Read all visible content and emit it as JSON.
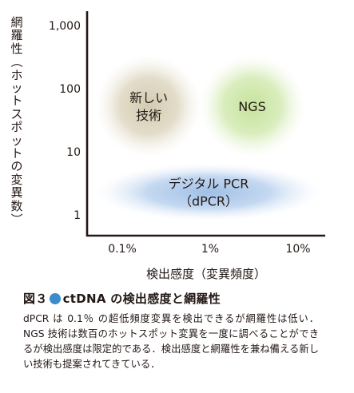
{
  "chart_data": {
    "type": "scatter",
    "ylabel": "網羅性（ホットスポットの変異数）",
    "xlabel": "検出感度（変異頻度）",
    "x_ticks": [
      "0.1%",
      "1%",
      "10%"
    ],
    "y_ticks": [
      "1,000",
      "100",
      "10",
      "1"
    ],
    "x_scale": "log",
    "y_scale": "log",
    "xlim": [
      "0.1%",
      "10%"
    ],
    "ylim": [
      1,
      1000
    ],
    "regions": [
      {
        "label": "新しい\n技術",
        "x": "0.2%",
        "y": 50,
        "color": "#d8d0b4"
      },
      {
        "label": "NGS",
        "x": "3%",
        "y": 50,
        "color": "#cce6a2"
      },
      {
        "label": "デジタル PCR\n（dPCR）",
        "x": "1%",
        "y": 2.5,
        "color": "#a9c6e9"
      }
    ],
    "grid": false,
    "legend": "none"
  },
  "caption": {
    "title_prefix": "図３",
    "title_text": "ctDNA の検出感度と網羅性",
    "body": "dPCR は 0.1％ の超低頻度変異を検出できるが網羅性は低い．NGS 技術は数百のホットスポット変異を一度に調べることができるが検出感度は限定的である．検出感度と網羅性を兼ね備える新しい技術も提案されてきている．",
    "dot_color": "#3a8ccd"
  }
}
